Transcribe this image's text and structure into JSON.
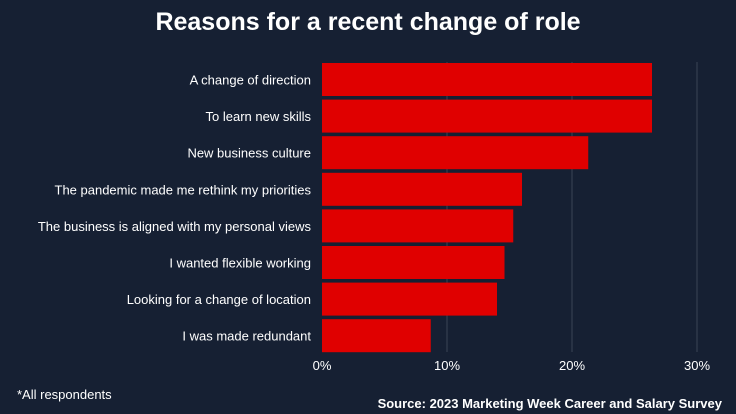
{
  "chart_data": {
    "type": "bar",
    "orientation": "horizontal",
    "title": "Reasons for a recent change of role",
    "categories": [
      "A change of direction",
      "To learn new skills",
      "New business culture",
      "The pandemic made me rethink my priorities",
      "The business is aligned with my personal views",
      "I wanted flexible working",
      "Looking for a change of location",
      "I was made redundant"
    ],
    "values": [
      26.4,
      26.4,
      21.3,
      16.0,
      15.3,
      14.6,
      14.0,
      8.7
    ],
    "xlim": [
      0,
      30
    ],
    "xticks": [
      "0%",
      "10%",
      "20%",
      "30%"
    ],
    "xtick_values": [
      0,
      10,
      20,
      30
    ],
    "grid": true,
    "bar_color": "#e00000"
  },
  "footnote": "*All respondents",
  "source": "Source: 2023 Marketing Week Career and Salary Survey",
  "colors": {
    "background": "#162033",
    "gridline": "#3a4456",
    "text": "#ffffff"
  }
}
